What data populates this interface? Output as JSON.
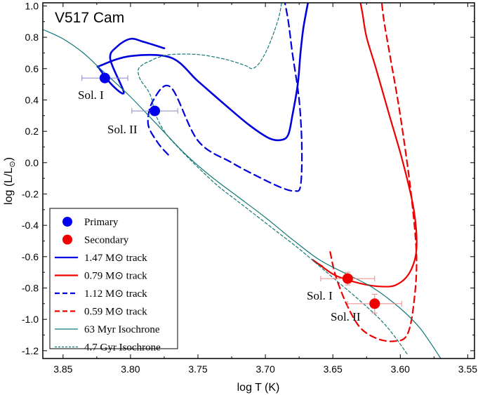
{
  "chart_data": {
    "type": "line",
    "title": "V517 Cam",
    "xlabel": "log T (K)",
    "ylabel": "log (L/L",
    "ylabel_sub": "⊙",
    "ylabel_tail": ")",
    "xlim": [
      3.865,
      3.545
    ],
    "ylim": [
      -1.25,
      1.02
    ],
    "x_ticks": [
      3.85,
      3.8,
      3.75,
      3.7,
      3.65,
      3.6,
      3.55
    ],
    "x_tick_labels": [
      "3.85",
      "3.80",
      "3.75",
      "3.70",
      "3.65",
      "3.60",
      "3.55"
    ],
    "y_ticks": [
      -1.2,
      -1.0,
      -0.8,
      -0.6,
      -0.4,
      -0.2,
      0.0,
      0.2,
      0.4,
      0.6,
      0.8,
      1.0
    ],
    "y_tick_labels": [
      "-1.2",
      "-1.0",
      "-0.8",
      "-0.6",
      "-0.4",
      "-0.2",
      "0.0",
      "0.2",
      "0.4",
      "0.6",
      "0.8",
      "1.0"
    ],
    "series": [
      {
        "name": "1.47 M⊙ track",
        "color": "#0000dd",
        "dash": "solid",
        "width": 2.6,
        "x": [
          3.775,
          3.79,
          3.8,
          3.81,
          3.815,
          3.805,
          3.813,
          3.823,
          3.822,
          3.8,
          3.77,
          3.75,
          3.73,
          3.712,
          3.697,
          3.688,
          3.683,
          3.68,
          3.676,
          3.674,
          3.672,
          3.67,
          3.668
        ],
        "y": [
          0.73,
          0.77,
          0.79,
          0.74,
          0.66,
          0.45,
          0.49,
          0.6,
          0.62,
          0.68,
          0.67,
          0.52,
          0.37,
          0.24,
          0.155,
          0.145,
          0.18,
          0.3,
          0.5,
          0.7,
          0.85,
          0.95,
          1.04
        ]
      },
      {
        "name": "0.79 M⊙ track",
        "color": "#ee0000",
        "dash": "solid",
        "width": 2.2,
        "x": [
          3.658,
          3.662,
          3.665,
          3.66,
          3.648,
          3.63,
          3.615,
          3.603,
          3.593,
          3.588,
          3.59,
          3.598,
          3.608,
          3.618,
          3.625,
          3.628,
          3.63
        ],
        "y": [
          -0.66,
          -0.64,
          -0.62,
          -0.65,
          -0.72,
          -0.77,
          -0.79,
          -0.78,
          -0.7,
          -0.55,
          -0.3,
          0.0,
          0.3,
          0.6,
          0.8,
          0.95,
          1.04
        ]
      },
      {
        "name": "1.12 M⊙ track",
        "color": "#0000dd",
        "dash": "10,6",
        "width": 2.2,
        "x": [
          3.772,
          3.78,
          3.787,
          3.783,
          3.77,
          3.75,
          3.725,
          3.703,
          3.688,
          3.679,
          3.674,
          3.673,
          3.675,
          3.68,
          3.683,
          3.686
        ],
        "y": [
          0.05,
          0.13,
          0.25,
          0.4,
          0.48,
          0.14,
          0.0,
          -0.1,
          -0.16,
          -0.18,
          -0.15,
          0.1,
          0.4,
          0.7,
          0.9,
          1.04
        ]
      },
      {
        "name": "0.59 M⊙ track",
        "color": "#ee0000",
        "dash": "9,6",
        "width": 2.2,
        "x": [
          3.652,
          3.648,
          3.64,
          3.63,
          3.618,
          3.605,
          3.595,
          3.59,
          3.588,
          3.592,
          3.6,
          3.608,
          3.612,
          3.614
        ],
        "y": [
          -0.57,
          -0.72,
          -0.9,
          -1.05,
          -1.12,
          -1.14,
          -1.1,
          -0.9,
          -0.6,
          -0.2,
          0.3,
          0.7,
          0.9,
          1.04
        ]
      },
      {
        "name": "63 Myr Isochrone",
        "color": "#117777",
        "dash": "solid",
        "width": 1.2,
        "x": [
          3.865,
          3.85,
          3.835,
          3.82,
          3.8,
          3.78,
          3.76,
          3.74,
          3.72,
          3.7,
          3.68,
          3.66,
          3.64,
          3.62,
          3.6,
          3.585,
          3.57
        ],
        "y": [
          0.85,
          0.79,
          0.7,
          0.58,
          0.42,
          0.24,
          0.06,
          -0.09,
          -0.22,
          -0.35,
          -0.49,
          -0.62,
          -0.71,
          -0.8,
          -0.93,
          -1.06,
          -1.25
        ]
      },
      {
        "name": "4.7 Gyr Isochrone",
        "color": "#117777",
        "dash": "4,3",
        "width": 1.2,
        "x": [
          3.595,
          3.605,
          3.615,
          3.63,
          3.645,
          3.66,
          3.675,
          3.69,
          3.705,
          3.72,
          3.735,
          3.75,
          3.765,
          3.775,
          3.782,
          3.784,
          3.787,
          3.792,
          3.794,
          3.794,
          3.79,
          3.785,
          3.78,
          3.77,
          3.75,
          3.73,
          3.715,
          3.71,
          3.705,
          3.7,
          3.695,
          3.69,
          3.688
        ],
        "y": [
          -1.22,
          -1.1,
          -1.0,
          -0.88,
          -0.77,
          -0.66,
          -0.55,
          -0.45,
          -0.35,
          -0.25,
          -0.15,
          -0.03,
          0.1,
          0.2,
          0.32,
          0.4,
          0.46,
          0.52,
          0.56,
          0.6,
          0.63,
          0.65,
          0.67,
          0.69,
          0.69,
          0.66,
          0.62,
          0.6,
          0.63,
          0.7,
          0.8,
          0.93,
          1.02
        ]
      }
    ],
    "points": [
      {
        "name": "Primary",
        "label": "Sol. I",
        "color": "#0000ee",
        "x": 3.819,
        "y": 0.54,
        "xerr": 0.017,
        "yerr": 0.0
      },
      {
        "name": "Primary",
        "label": "Sol. II",
        "color": "#0000ee",
        "x": 3.782,
        "y": 0.33,
        "xerr": 0.017,
        "yerr": 0.0
      },
      {
        "name": "Secondary",
        "label": "Sol. I",
        "color": "#ee0000",
        "x": 3.639,
        "y": -0.74,
        "xerr": 0.02,
        "yerr": 0.04
      },
      {
        "name": "Secondary",
        "label": "Sol. II",
        "color": "#ee0000",
        "x": 3.619,
        "y": -0.9,
        "xerr": 0.02,
        "yerr": 0.06
      }
    ],
    "annotations": [
      "Sol. I",
      "Sol. II",
      "Sol. I",
      "Sol. II"
    ],
    "legend": {
      "position": "bottom-left",
      "entries": [
        {
          "label": "Primary",
          "kind": "dot",
          "color": "#0000ee"
        },
        {
          "label": "Secondary",
          "kind": "dot",
          "color": "#ee0000"
        },
        {
          "label": "1.47 M⊙ track",
          "kind": "line",
          "color": "#0000dd",
          "dash": "solid"
        },
        {
          "label": "0.79 M⊙ track",
          "kind": "line",
          "color": "#ee0000",
          "dash": "solid"
        },
        {
          "label": "1.12 M⊙ track",
          "kind": "line",
          "color": "#0000dd",
          "dash": "dashed"
        },
        {
          "label": "0.59 M⊙ track",
          "kind": "line",
          "color": "#ee0000",
          "dash": "dashed"
        },
        {
          "label": "63 Myr Isochrone",
          "kind": "line",
          "color": "#117777",
          "dash": "solid"
        },
        {
          "label": "4.7 Gyr Isochrone",
          "kind": "line",
          "color": "#117777",
          "dash": "dotted"
        }
      ]
    }
  }
}
